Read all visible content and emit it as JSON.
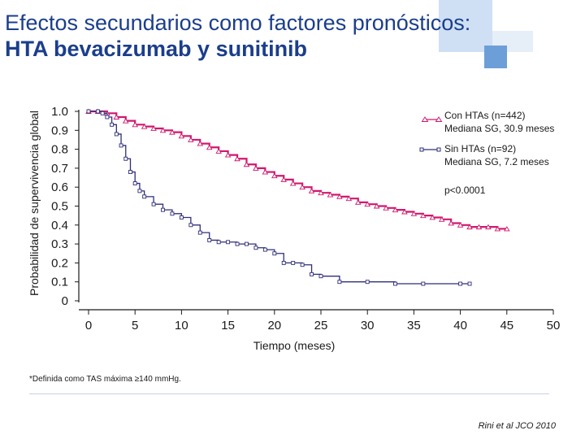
{
  "slide": {
    "title_line1": "Efectos secundarios como factores pronósticos:",
    "title_line2": "HTA bevacizumab y sunitinib",
    "footnote": "*Definida como TAS  máxima ≥140 mmHg.",
    "citation": "Rini et al JCO 2010"
  },
  "colors": {
    "title": "#1b3e8c",
    "hta_series": "#d0196e",
    "no_hta_series": "#2f2f7a",
    "deco_light": "#cfe0f4",
    "deco_mid": "#a9c6ea",
    "deco_dark": "#5f96d3"
  },
  "chart_data": {
    "type": "line",
    "title": "Efectos secundarios como factores pronósticos: HTA bevacizumab y sunitinib",
    "xlabel": "Tiempo (meses)",
    "ylabel": "Probabilidad de supervivencia global",
    "xlim": [
      0,
      50
    ],
    "ylim": [
      0,
      1.0
    ],
    "x_ticks": [
      0,
      5,
      10,
      15,
      20,
      25,
      30,
      35,
      40,
      45,
      50
    ],
    "y_ticks": [
      1.0,
      0.9,
      0.8,
      0.7,
      0.6,
      0.5,
      0.4,
      0.3,
      0.2,
      0.1,
      0
    ],
    "y_tick_labels": [
      "1.0",
      "0.9",
      "0.8",
      "0.7",
      "0.6",
      "0.5",
      "0.4",
      "0.3",
      "0.2",
      "0.1",
      "0"
    ],
    "grid": false,
    "legend_position": "top-right",
    "annotation": "p<0.0001",
    "series": [
      {
        "name": "Con  HTAs (n=442)",
        "subtitle": "Mediana SG, 30.9 meses",
        "marker": "triangle",
        "color": "#d0196e",
        "x": [
          0,
          1,
          2,
          3,
          4,
          5,
          6,
          7,
          8,
          9,
          10,
          11,
          12,
          13,
          14,
          15,
          16,
          17,
          18,
          19,
          20,
          21,
          22,
          23,
          24,
          25,
          26,
          27,
          28,
          29,
          30,
          31,
          32,
          33,
          34,
          35,
          36,
          37,
          38,
          39,
          40,
          41,
          42,
          43,
          44,
          45
        ],
        "y": [
          1.0,
          1.0,
          0.99,
          0.97,
          0.95,
          0.93,
          0.92,
          0.91,
          0.9,
          0.89,
          0.87,
          0.85,
          0.83,
          0.81,
          0.79,
          0.77,
          0.75,
          0.72,
          0.7,
          0.68,
          0.66,
          0.64,
          0.62,
          0.6,
          0.58,
          0.57,
          0.56,
          0.55,
          0.54,
          0.52,
          0.51,
          0.5,
          0.49,
          0.48,
          0.47,
          0.46,
          0.45,
          0.44,
          0.43,
          0.41,
          0.4,
          0.39,
          0.39,
          0.39,
          0.38,
          0.38
        ]
      },
      {
        "name": "Sin HTAs (n=92)",
        "subtitle": "Mediana SG, 7.2 meses",
        "marker": "square",
        "color": "#2f2f7a",
        "x": [
          0,
          1,
          1.5,
          2,
          2.5,
          3,
          3.5,
          4,
          4.5,
          5,
          5.5,
          6,
          7,
          8,
          9,
          10,
          11,
          12,
          13,
          14,
          15,
          16,
          17,
          18,
          19,
          20,
          21,
          22,
          23,
          24,
          25,
          27,
          30,
          33,
          36,
          40,
          41
        ],
        "y": [
          1.0,
          1.0,
          0.99,
          0.97,
          0.93,
          0.88,
          0.82,
          0.75,
          0.68,
          0.62,
          0.58,
          0.55,
          0.51,
          0.48,
          0.46,
          0.44,
          0.4,
          0.36,
          0.32,
          0.31,
          0.31,
          0.3,
          0.3,
          0.28,
          0.27,
          0.25,
          0.2,
          0.2,
          0.19,
          0.14,
          0.13,
          0.1,
          0.1,
          0.09,
          0.09,
          0.09,
          0.09
        ]
      }
    ]
  }
}
